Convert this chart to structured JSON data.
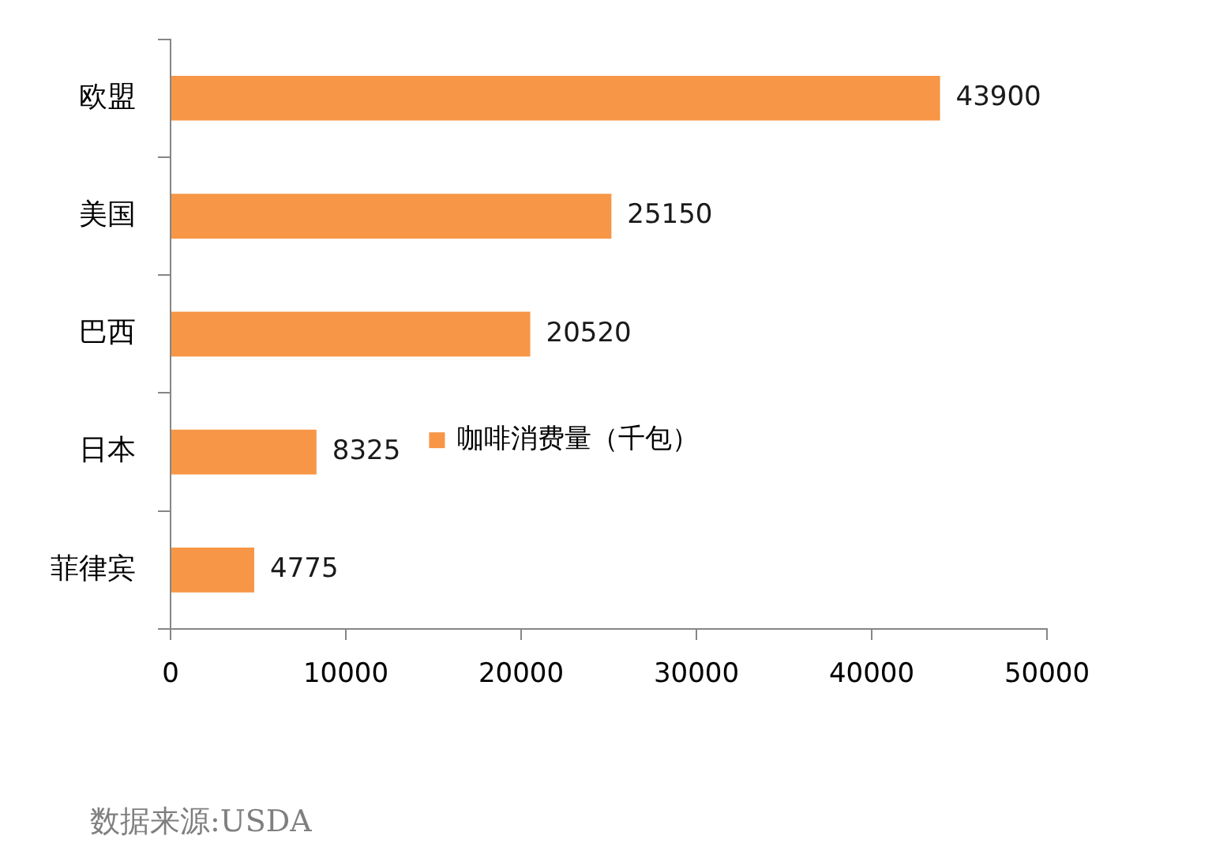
{
  "chart_data": {
    "type": "bar",
    "orientation": "horizontal",
    "categories": [
      "欧盟",
      "美国",
      "巴西",
      "日本",
      "菲律宾"
    ],
    "series": [
      {
        "name": "咖啡消费量（千包）",
        "color": "#f79646",
        "values": [
          43900,
          25150,
          20520,
          8325,
          4775
        ]
      }
    ],
    "xlim": [
      0,
      50000
    ],
    "xticks": [
      0,
      10000,
      20000,
      30000,
      40000,
      50000
    ],
    "data_labels": true,
    "legend": "bottom",
    "grid": false,
    "annotations": [
      "数据来源:USDA"
    ]
  }
}
